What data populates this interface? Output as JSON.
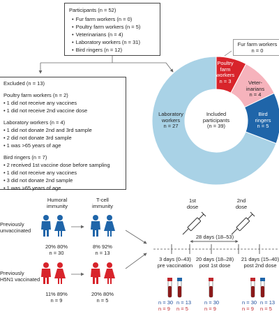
{
  "participants": {
    "title": "Participants (n = 52)",
    "items": [
      "Fur farm workers (n = 0)",
      "Poultry farm workers (n = 5)",
      "Veterinarians (n = 4)",
      "Laboratory workers (n = 31)",
      "Bird ringers (n = 12)"
    ]
  },
  "excluded": {
    "title": "Excluded (n = 13)",
    "groups": [
      {
        "heading": "Poultry farm workers (n = 2)",
        "items": [
          "1 did not receive any vaccines",
          "1 did not receive 2nd vaccine dose"
        ]
      },
      {
        "heading": "Laboratory workers (n = 4)",
        "items": [
          "1 did not donate 2nd and 3rd sample",
          "2 did not donate 3rd sample",
          "1 was >65 years of age"
        ]
      },
      {
        "heading": "Bird ringers (n = 7)",
        "items": [
          "2 received 1st vaccine dose before sampling",
          "1 did not receive any vaccines",
          "3 did not donate 2nd sample",
          "1 was >65 years of age"
        ]
      }
    ]
  },
  "donut": {
    "center_label": "Included participants",
    "center_n": "(n = 39)",
    "fur_label": "Fur farm workers",
    "fur_n": "n = 0",
    "slices": [
      {
        "name": "Poultry farm workers",
        "line1": "Poultry",
        "line2": "farm",
        "line3": "workers",
        "n_label": "n = 3",
        "value": 3,
        "color": "#d8242b"
      },
      {
        "name": "Veterinarians",
        "line1": "Veter-",
        "line2": "inarians",
        "n_label": "n = 4",
        "value": 4,
        "color": "#f6b3bc"
      },
      {
        "name": "Bird ringers",
        "line1": "Bird",
        "line2": "ringers",
        "n_label": "n = 5",
        "value": 5,
        "color": "#1f65a9"
      },
      {
        "name": "Laboratory workers",
        "line1": "Laboratory",
        "line2": "workers",
        "n_label": "n = 27",
        "value": 27,
        "color": "#a9d2e6"
      }
    ]
  },
  "immunity": {
    "humoral_line1": "Humoral",
    "humoral_line2": "immunity",
    "tcell_line1": "T-cell",
    "tcell_line2": "immunity",
    "prev_unvacc_line1": "Previously",
    "prev_unvacc_line2": "unvaccinated",
    "prev_vacc_line1": "Previously",
    "prev_vacc_line2": "H5N1 vaccinated",
    "unvacc_humoral_pct": "20% 80%",
    "unvacc_humoral_n": "n = 30",
    "unvacc_tcell_pct": "8% 92%",
    "unvacc_tcell_n": "n = 13",
    "vacc_humoral_pct": "11% 89%",
    "vacc_humoral_n": "n = 9",
    "vacc_tcell_pct": "20% 80%",
    "vacc_tcell_n": "n = 5",
    "colors": {
      "unvaccinated": "#1f65a9",
      "vaccinated": "#d8242b"
    }
  },
  "timeline": {
    "dose1_line1": "1st",
    "dose1_line2": "dose",
    "dose2_line1": "2nd",
    "dose2_line2": "dose",
    "interval1": "28 days (18–53)",
    "points": [
      {
        "line1": "3 days (0–43)",
        "line2": "pre vaccination",
        "n_humoral": "n = 30",
        "n_humoral_vacc": "n = 9",
        "n_tcell": "n = 13",
        "n_tcell_vacc": "n = 5"
      },
      {
        "line1": "20 days (18–28)",
        "line2": "post 1st dose",
        "n_humoral": "n = 30",
        "n_humoral_vacc": "n = 9"
      },
      {
        "line1": "21 days (15–40)",
        "line2": "post 2nd dose",
        "n_humoral": "n = 30",
        "n_humoral_vacc": "n = 9",
        "n_tcell": "n = 13",
        "n_tcell_vacc": "n = 5"
      }
    ]
  }
}
